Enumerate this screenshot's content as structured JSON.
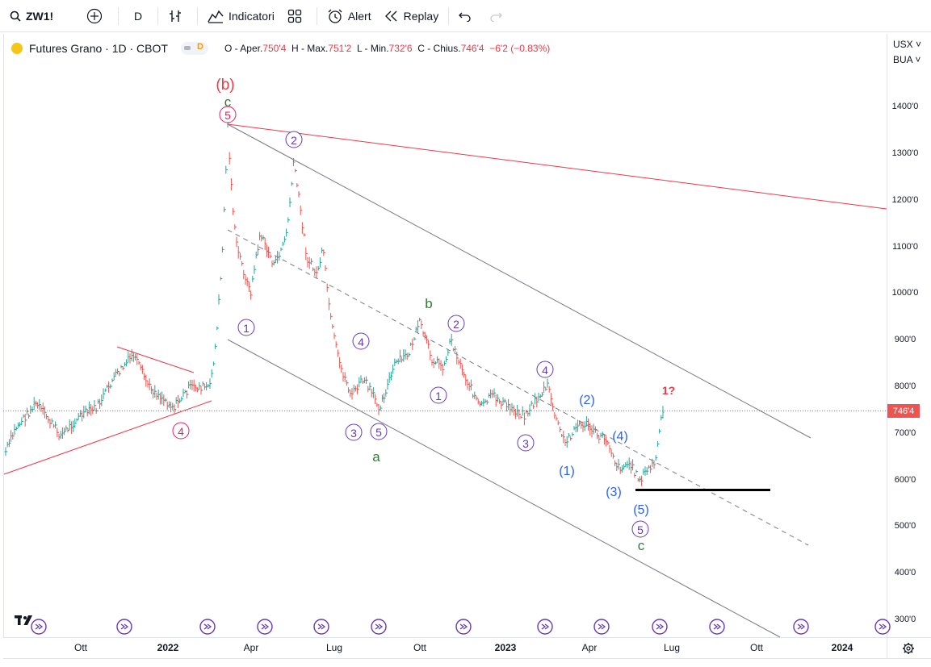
{
  "toolbar": {
    "search_icon": "search-icon",
    "symbol": "ZW1!",
    "add_icon": "plus-circle-icon",
    "interval": "D",
    "chart_type_icon": "bars-icon",
    "indicators_label": "Indicatori",
    "layout_icon": "grid-icon",
    "alert_label": "Alert",
    "replay_label": "Replay",
    "undo_icon": "undo-icon",
    "redo_icon": "redo-icon"
  },
  "legend": {
    "title": "Futures Grano · 1D · CBOT",
    "badge": "D",
    "open_label": "O - Aper.",
    "open": "750'4",
    "high_label": "H - Max.",
    "high": "751'2",
    "low_label": "L - Min.",
    "low": "732'6",
    "close_label": "C - Chius.",
    "close": "746'4",
    "change": "−6'2 (−0.83%)"
  },
  "price_scale": {
    "currency": "USX",
    "unit": "BUA",
    "labels": [
      "1400'0",
      "1300'0",
      "1200'0",
      "1100'0",
      "1000'0",
      "900'0",
      "800'0",
      "700'0",
      "600'0",
      "500'0",
      "400'0",
      "300'0"
    ],
    "last_price": "746'4"
  },
  "time_axis": {
    "labels": [
      "Ott",
      "2022",
      "Apr",
      "Lug",
      "Ott",
      "2023",
      "Apr",
      "Lug",
      "Ott",
      "2024"
    ]
  },
  "annotations": {
    "b_paren": "(b)",
    "c_top": "c",
    "five_top": "5",
    "four_left": "4",
    "two_top": "2",
    "one_a": "1",
    "four_a": "4",
    "three_a": "3",
    "five_a": "5",
    "a_label": "a",
    "b_label": "b",
    "two_b": "2",
    "one_c": "1",
    "three_c": "3",
    "four_c": "4",
    "two_paren": "(2)",
    "one_paren": "(1)",
    "three_paren": "(3)",
    "four_paren": "(4)",
    "five_paren": "(5)",
    "five_c": "5",
    "c_bottom": "c",
    "one_q": "1?"
  },
  "colors": {
    "up": "#26a69a",
    "down": "#ef5350",
    "wave_red": "#f23645",
    "wave_green": "#2e7d32",
    "wave_purple": "#673ab7",
    "wave_blue": "#2962ff",
    "wave_pink": "#e91e63",
    "trend_gray": "#787b86",
    "price_line": "#ef5350"
  }
}
